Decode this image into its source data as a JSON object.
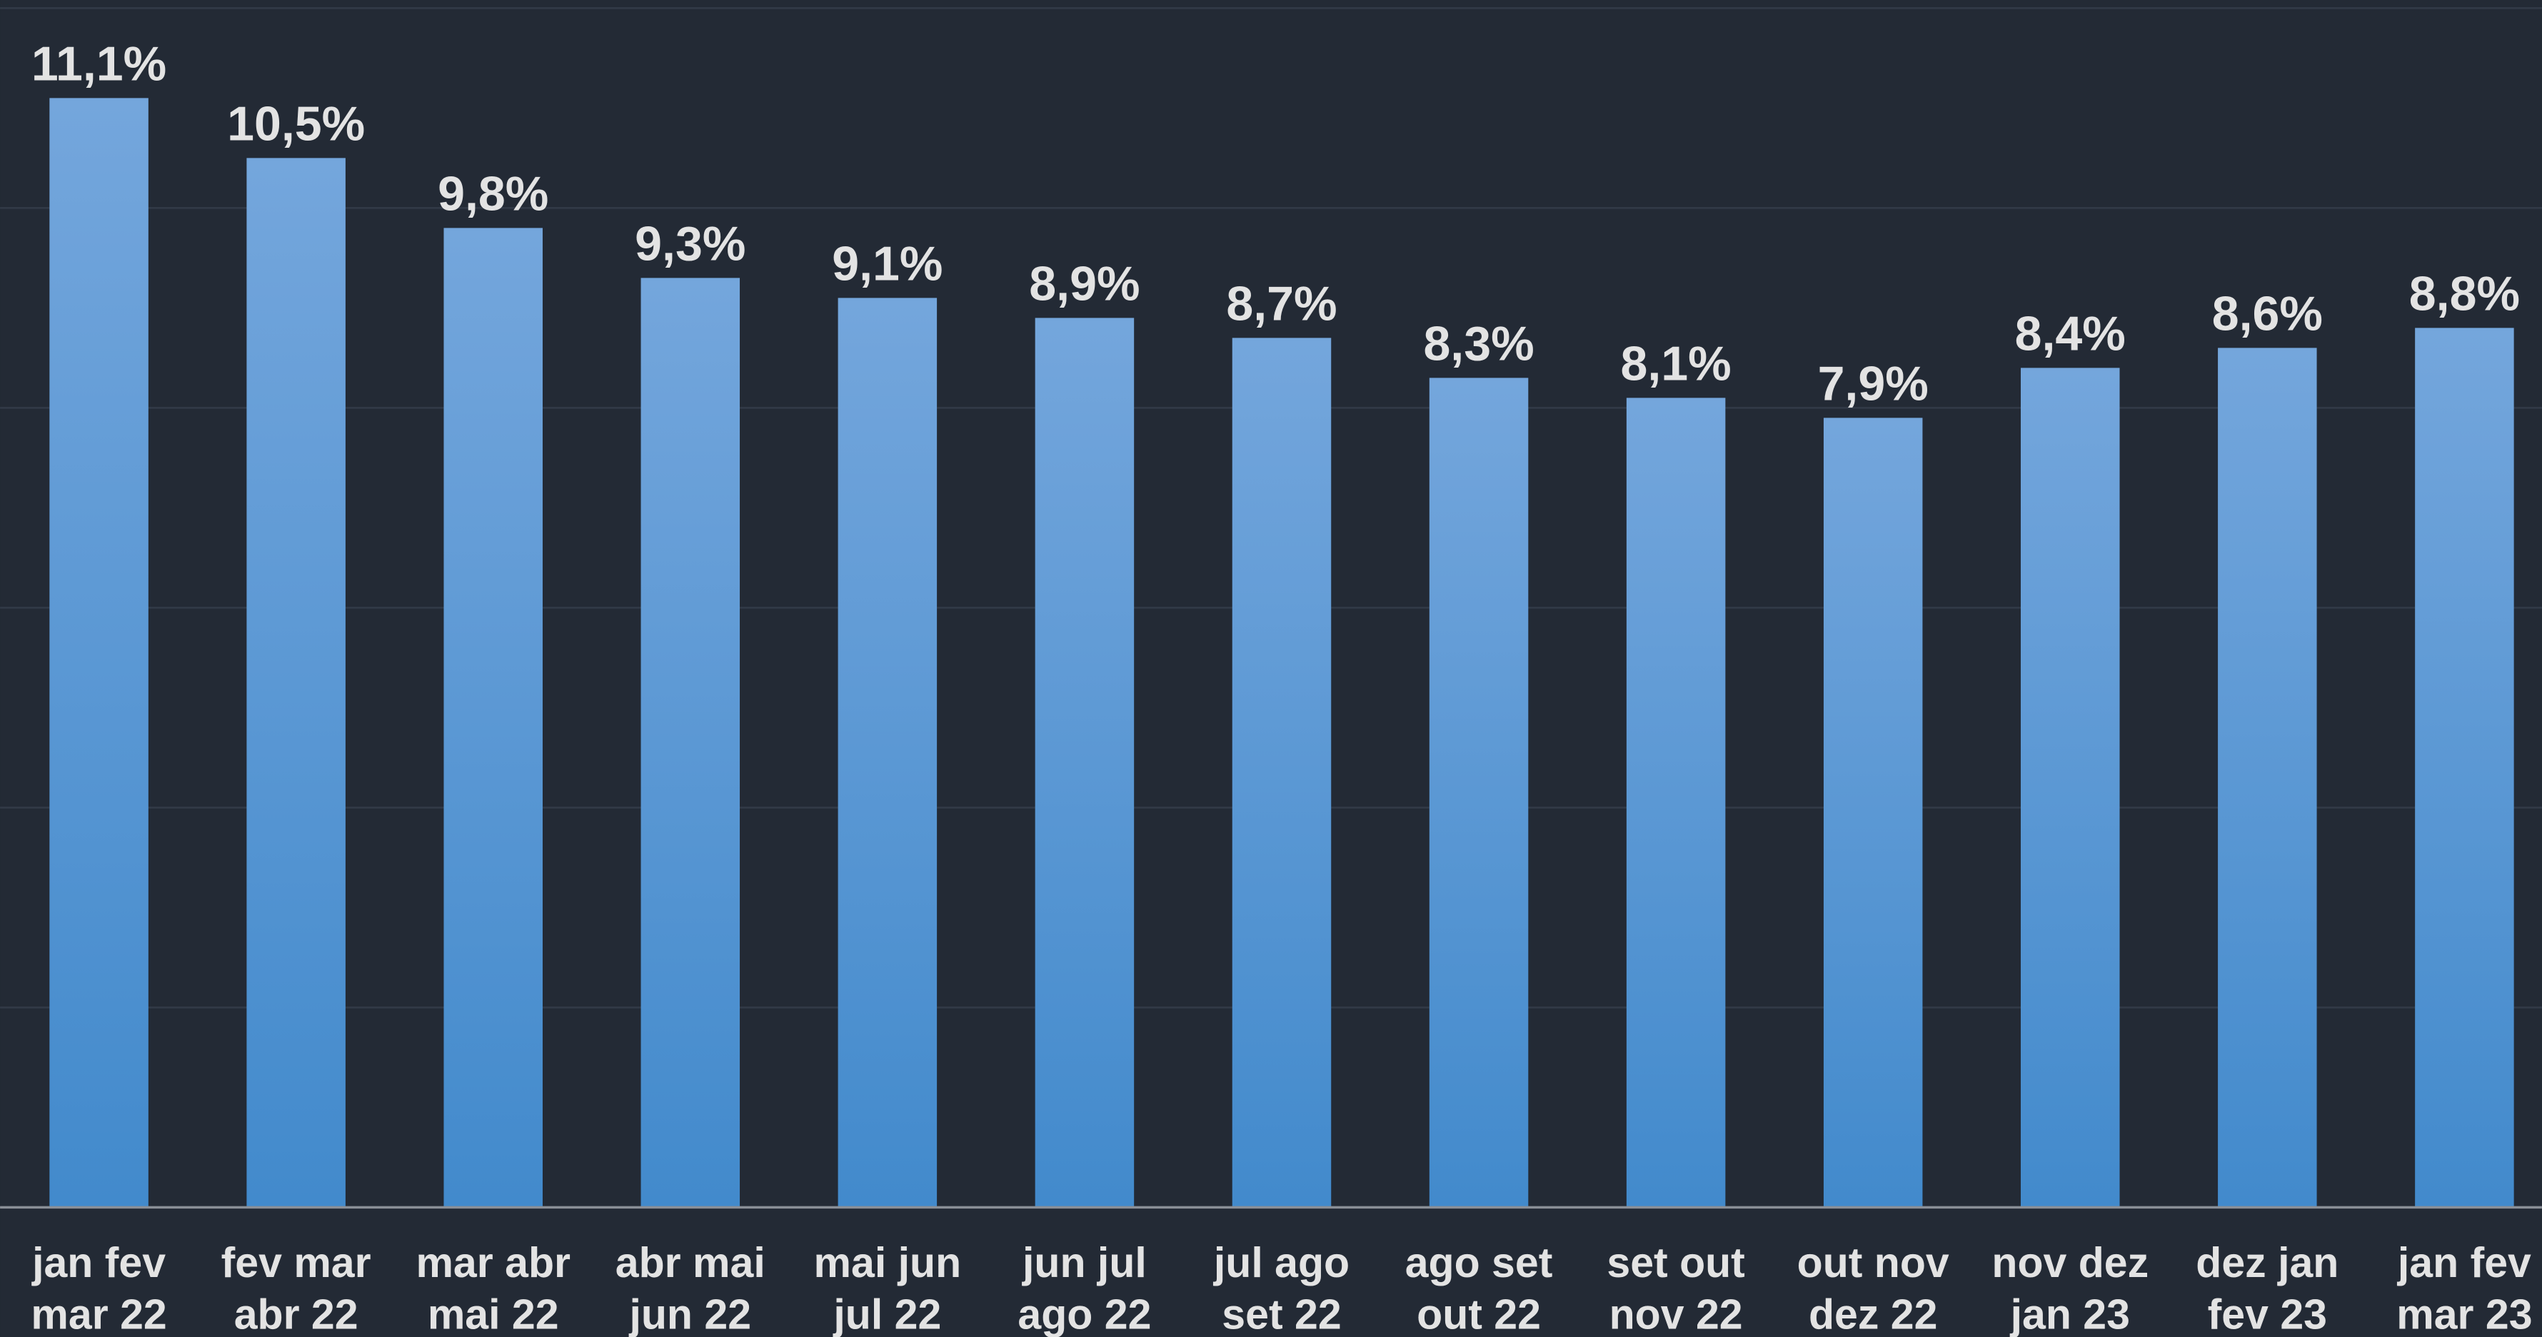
{
  "chart_data": {
    "type": "bar",
    "categories": [
      [
        "jan fev",
        "mar 22"
      ],
      [
        "fev mar",
        "abr 22"
      ],
      [
        "mar abr",
        "mai 22"
      ],
      [
        "abr mai",
        "jun 22"
      ],
      [
        "mai jun",
        "jul 22"
      ],
      [
        "jun jul",
        "ago 22"
      ],
      [
        "jul ago",
        "set 22"
      ],
      [
        "ago set",
        "out 22"
      ],
      [
        "set out",
        "nov 22"
      ],
      [
        "out nov",
        "dez 22"
      ],
      [
        "nov dez",
        "jan 23"
      ],
      [
        "dez jan",
        "fev 23"
      ],
      [
        "jan fev",
        "mar 23"
      ]
    ],
    "values": [
      11.1,
      10.5,
      9.8,
      9.3,
      9.1,
      8.9,
      8.7,
      8.3,
      8.1,
      7.9,
      8.4,
      8.6,
      8.8
    ],
    "value_labels": [
      "11,1%",
      "10,5%",
      "9,8%",
      "9,3%",
      "9,1%",
      "8,9%",
      "8,7%",
      "8,3%",
      "8,1%",
      "7,9%",
      "8,4%",
      "8,6%",
      "8,8%"
    ],
    "color": "#5699d6",
    "ylim": [
      0,
      12
    ],
    "yticks": [
      0,
      2,
      4,
      6,
      8,
      10,
      12
    ],
    "grid": true
  }
}
